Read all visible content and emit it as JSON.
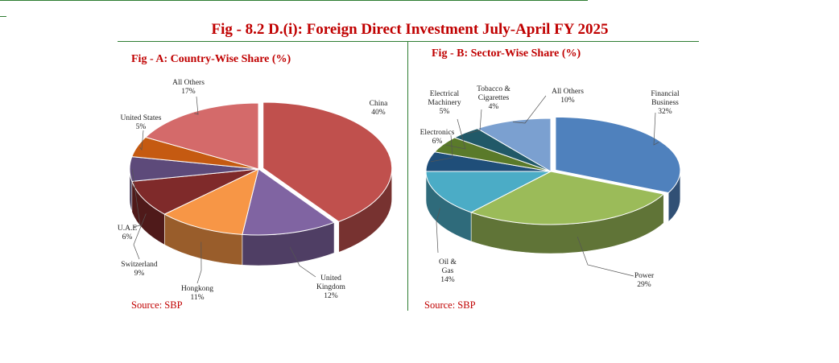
{
  "page": {
    "title": "Fig - 8.2 D.(i): Foreign Direct Investment July-April FY 2025",
    "colors": {
      "title": "#c00000",
      "rule": "#2e7d32"
    }
  },
  "chart_data": [
    {
      "type": "pie",
      "style": "3d-exploded",
      "title": "Fig - A: Country-Wise Share (%)",
      "source": "Source: SBP",
      "slices": [
        {
          "label": "China",
          "value": 40,
          "value_label": "40%",
          "color": "#c0504d"
        },
        {
          "label": "United Kingdom",
          "value": 12,
          "value_label": "12%",
          "color": "#8064a2"
        },
        {
          "label": "Hongkong",
          "value": 11,
          "value_label": "11%",
          "color": "#f79646"
        },
        {
          "label": "Switzerland",
          "value": 9,
          "value_label": "9%",
          "color": "#7f2a2a"
        },
        {
          "label": "U.A.E",
          "value": 6,
          "value_label": "6%",
          "color": "#5d4a7a"
        },
        {
          "label": "United States",
          "value": 5,
          "value_label": "5%",
          "color": "#c55a11"
        },
        {
          "label": "All Others",
          "value": 17,
          "value_label": "17%",
          "color": "#d46a6a"
        }
      ]
    },
    {
      "type": "pie",
      "style": "3d-exploded",
      "title": "Fig - B: Sector-Wise Share (%)",
      "source": "Source: SBP",
      "slices": [
        {
          "label": "Financial Business",
          "value": 32,
          "value_label": "32%",
          "color": "#4f81bd"
        },
        {
          "label": "Power",
          "value": 29,
          "value_label": "29%",
          "color": "#9bbb59"
        },
        {
          "label": "Oil & Gas Explorations",
          "value": 14,
          "value_label": "14%",
          "color": "#4bacc6"
        },
        {
          "label": "Electronics",
          "value": 6,
          "value_label": "6%",
          "color": "#1f4e79"
        },
        {
          "label": "Electrical Machinery",
          "value": 5,
          "value_label": "5%",
          "color": "#5a7a2a"
        },
        {
          "label": "Tobacco & Cigarettes",
          "value": 4,
          "value_label": "4%",
          "color": "#215968"
        },
        {
          "label": "All Others",
          "value": 10,
          "value_label": "10%",
          "color": "#7ba0d0"
        }
      ]
    }
  ]
}
